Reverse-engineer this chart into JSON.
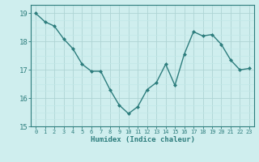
{
  "x": [
    0,
    1,
    2,
    3,
    4,
    5,
    6,
    7,
    8,
    9,
    10,
    11,
    12,
    13,
    14,
    15,
    16,
    17,
    18,
    19,
    20,
    21,
    22,
    23
  ],
  "y": [
    19.0,
    18.7,
    18.55,
    18.1,
    17.75,
    17.2,
    16.95,
    16.95,
    16.3,
    15.75,
    15.45,
    15.7,
    16.3,
    16.55,
    17.2,
    16.45,
    17.55,
    18.35,
    18.2,
    18.25,
    17.9,
    17.35,
    17.0,
    17.05
  ],
  "xlabel": "Humidex (Indice chaleur)",
  "ylim": [
    15,
    19.3
  ],
  "xlim": [
    -0.5,
    23.5
  ],
  "yticks": [
    15,
    16,
    17,
    18,
    19
  ],
  "xticks": [
    0,
    1,
    2,
    3,
    4,
    5,
    6,
    7,
    8,
    9,
    10,
    11,
    12,
    13,
    14,
    15,
    16,
    17,
    18,
    19,
    20,
    21,
    22,
    23
  ],
  "bg_color": "#cfeeee",
  "grid_major_color": "#aed4d4",
  "grid_minor_color": "#c2e8e8",
  "line_color": "#2d7d7d",
  "marker_color": "#2d7d7d",
  "axis_color": "#2d7d7d",
  "tick_color": "#2d7d7d",
  "label_color": "#2d7d7d"
}
